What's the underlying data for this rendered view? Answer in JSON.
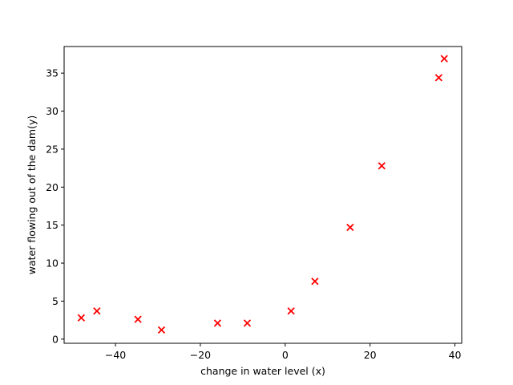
{
  "chart_data": {
    "type": "scatter",
    "title": "",
    "xlabel": "change in water level (x)",
    "ylabel": "water flowing out of the dam(y)",
    "xlim": [
      -52.1,
      41.6
    ],
    "ylim": [
      -0.55,
      38.5
    ],
    "xticks": [
      -40,
      -20,
      0,
      20,
      40
    ],
    "yticks": [
      0,
      5,
      10,
      15,
      20,
      25,
      30,
      35
    ],
    "xtick_labels": [
      "−40",
      "−20",
      "0",
      "20",
      "40"
    ],
    "ytick_labels": [
      "0",
      "5",
      "10",
      "15",
      "20",
      "25",
      "30",
      "35"
    ],
    "grid": false,
    "marker": "x",
    "marker_color": "#ff0000",
    "points": [
      {
        "x": -48.06,
        "y": 2.8
      },
      {
        "x": -44.38,
        "y": 3.7
      },
      {
        "x": -34.7,
        "y": 2.6
      },
      {
        "x": -29.15,
        "y": 1.2
      },
      {
        "x": -15.94,
        "y": 2.1
      },
      {
        "x": -8.94,
        "y": 2.1
      },
      {
        "x": 1.39,
        "y": 3.7
      },
      {
        "x": 7.01,
        "y": 7.6
      },
      {
        "x": 15.31,
        "y": 14.7
      },
      {
        "x": 22.76,
        "y": 22.8
      },
      {
        "x": 36.19,
        "y": 34.4
      },
      {
        "x": 37.49,
        "y": 36.9
      }
    ]
  }
}
